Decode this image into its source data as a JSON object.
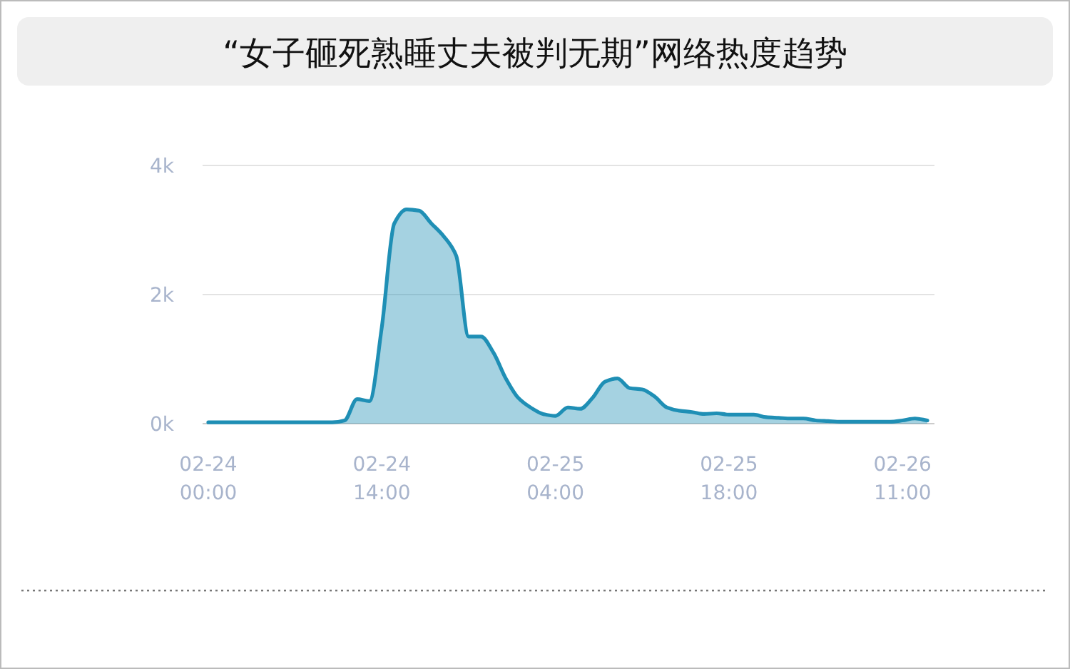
{
  "chart_data": {
    "type": "area",
    "title": "“女子砸死熟睡丈夫被判无期”网络热度趋势",
    "categories": [
      "02-24\n00:00",
      null,
      null,
      null,
      null,
      null,
      null,
      null,
      null,
      null,
      null,
      null,
      null,
      null,
      "02-24\n14:00",
      null,
      null,
      null,
      null,
      null,
      null,
      null,
      null,
      null,
      null,
      null,
      null,
      null,
      "02-25\n04:00",
      null,
      null,
      null,
      null,
      null,
      null,
      null,
      null,
      null,
      null,
      null,
      null,
      null,
      "02-25\n18:00",
      null,
      null,
      null,
      null,
      null,
      null,
      null,
      null,
      null,
      null,
      null,
      null,
      null,
      "02-26\n11:00",
      null,
      null
    ],
    "series": [
      {
        "color": "#1f8fb5",
        "values": [
          20,
          20,
          20,
          20,
          20,
          20,
          20,
          20,
          20,
          20,
          20,
          50,
          380,
          350,
          1500,
          3100,
          3320,
          3300,
          3100,
          2900,
          2600,
          1350,
          1350,
          1100,
          700,
          400,
          250,
          150,
          120,
          250,
          230,
          400,
          650,
          700,
          550,
          530,
          420,
          250,
          200,
          180,
          150,
          160,
          140,
          140,
          140,
          100,
          90,
          80,
          80,
          50,
          40,
          30,
          30,
          30,
          30,
          30,
          50,
          80,
          50
        ]
      }
    ],
    "ylim": [
      0,
      4000
    ],
    "yticks": [
      {
        "value": 0,
        "label": "0k"
      },
      {
        "value": 2000,
        "label": "2k"
      },
      {
        "value": 4000,
        "label": "4k"
      }
    ],
    "grid": "y"
  }
}
